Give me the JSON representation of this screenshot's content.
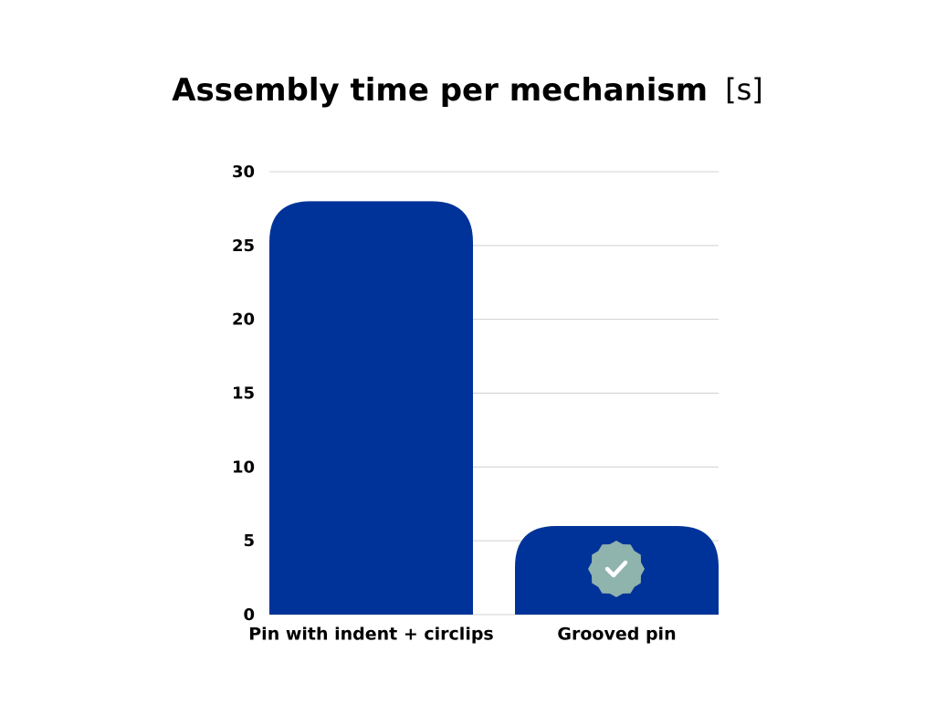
{
  "chart_data": {
    "type": "bar",
    "title": "Assembly time per mechanism",
    "unit": "[s]",
    "categories": [
      "Pin with indent + circlips",
      "Grooved pin"
    ],
    "values": [
      28,
      6
    ],
    "color": "#003399",
    "ylim": [
      0,
      30
    ],
    "yticks": [
      0,
      5,
      10,
      15,
      20,
      25,
      30
    ],
    "grid": true
  }
}
